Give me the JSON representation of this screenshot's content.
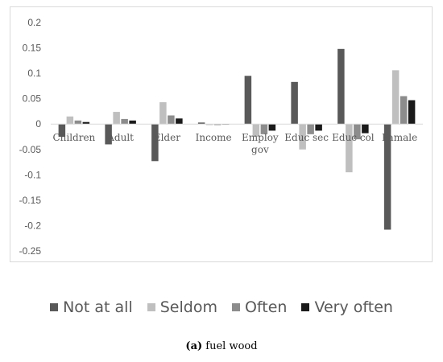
{
  "chart_data": {
    "type": "bar",
    "categories": [
      "Children",
      "Adult",
      "Elder",
      "Income",
      "Employ gov",
      "Educ sec",
      "Educ col",
      "Famale"
    ],
    "series": [
      {
        "name": "Not at all",
        "color": "#595959",
        "values": [
          -0.025,
          -0.04,
          -0.073,
          0.003,
          0.095,
          0.083,
          0.148,
          -0.208
        ]
      },
      {
        "name": "Seldom",
        "color": "#bfbfbf",
        "values": [
          0.015,
          0.024,
          0.043,
          -0.002,
          -0.025,
          -0.05,
          -0.095,
          0.106
        ]
      },
      {
        "name": "Often",
        "color": "#8c8c8c",
        "values": [
          0.007,
          0.01,
          0.017,
          -0.002,
          -0.02,
          -0.02,
          -0.03,
          0.055
        ]
      },
      {
        "name": "Very often",
        "color": "#1a1a1a",
        "values": [
          0.004,
          0.007,
          0.011,
          -0.001,
          -0.013,
          -0.013,
          -0.018,
          0.047
        ]
      }
    ],
    "ylim": [
      -0.25,
      0.2
    ],
    "yticks": [
      "0.2",
      "0.15",
      "0.1",
      "0.05",
      "0",
      "-0.05",
      "-0.1",
      "-0.15",
      "-0.2",
      "-0.25"
    ],
    "grid": false,
    "legend_position": "bottom"
  },
  "caption": {
    "tag": "(a)",
    "text": " fuel wood"
  }
}
